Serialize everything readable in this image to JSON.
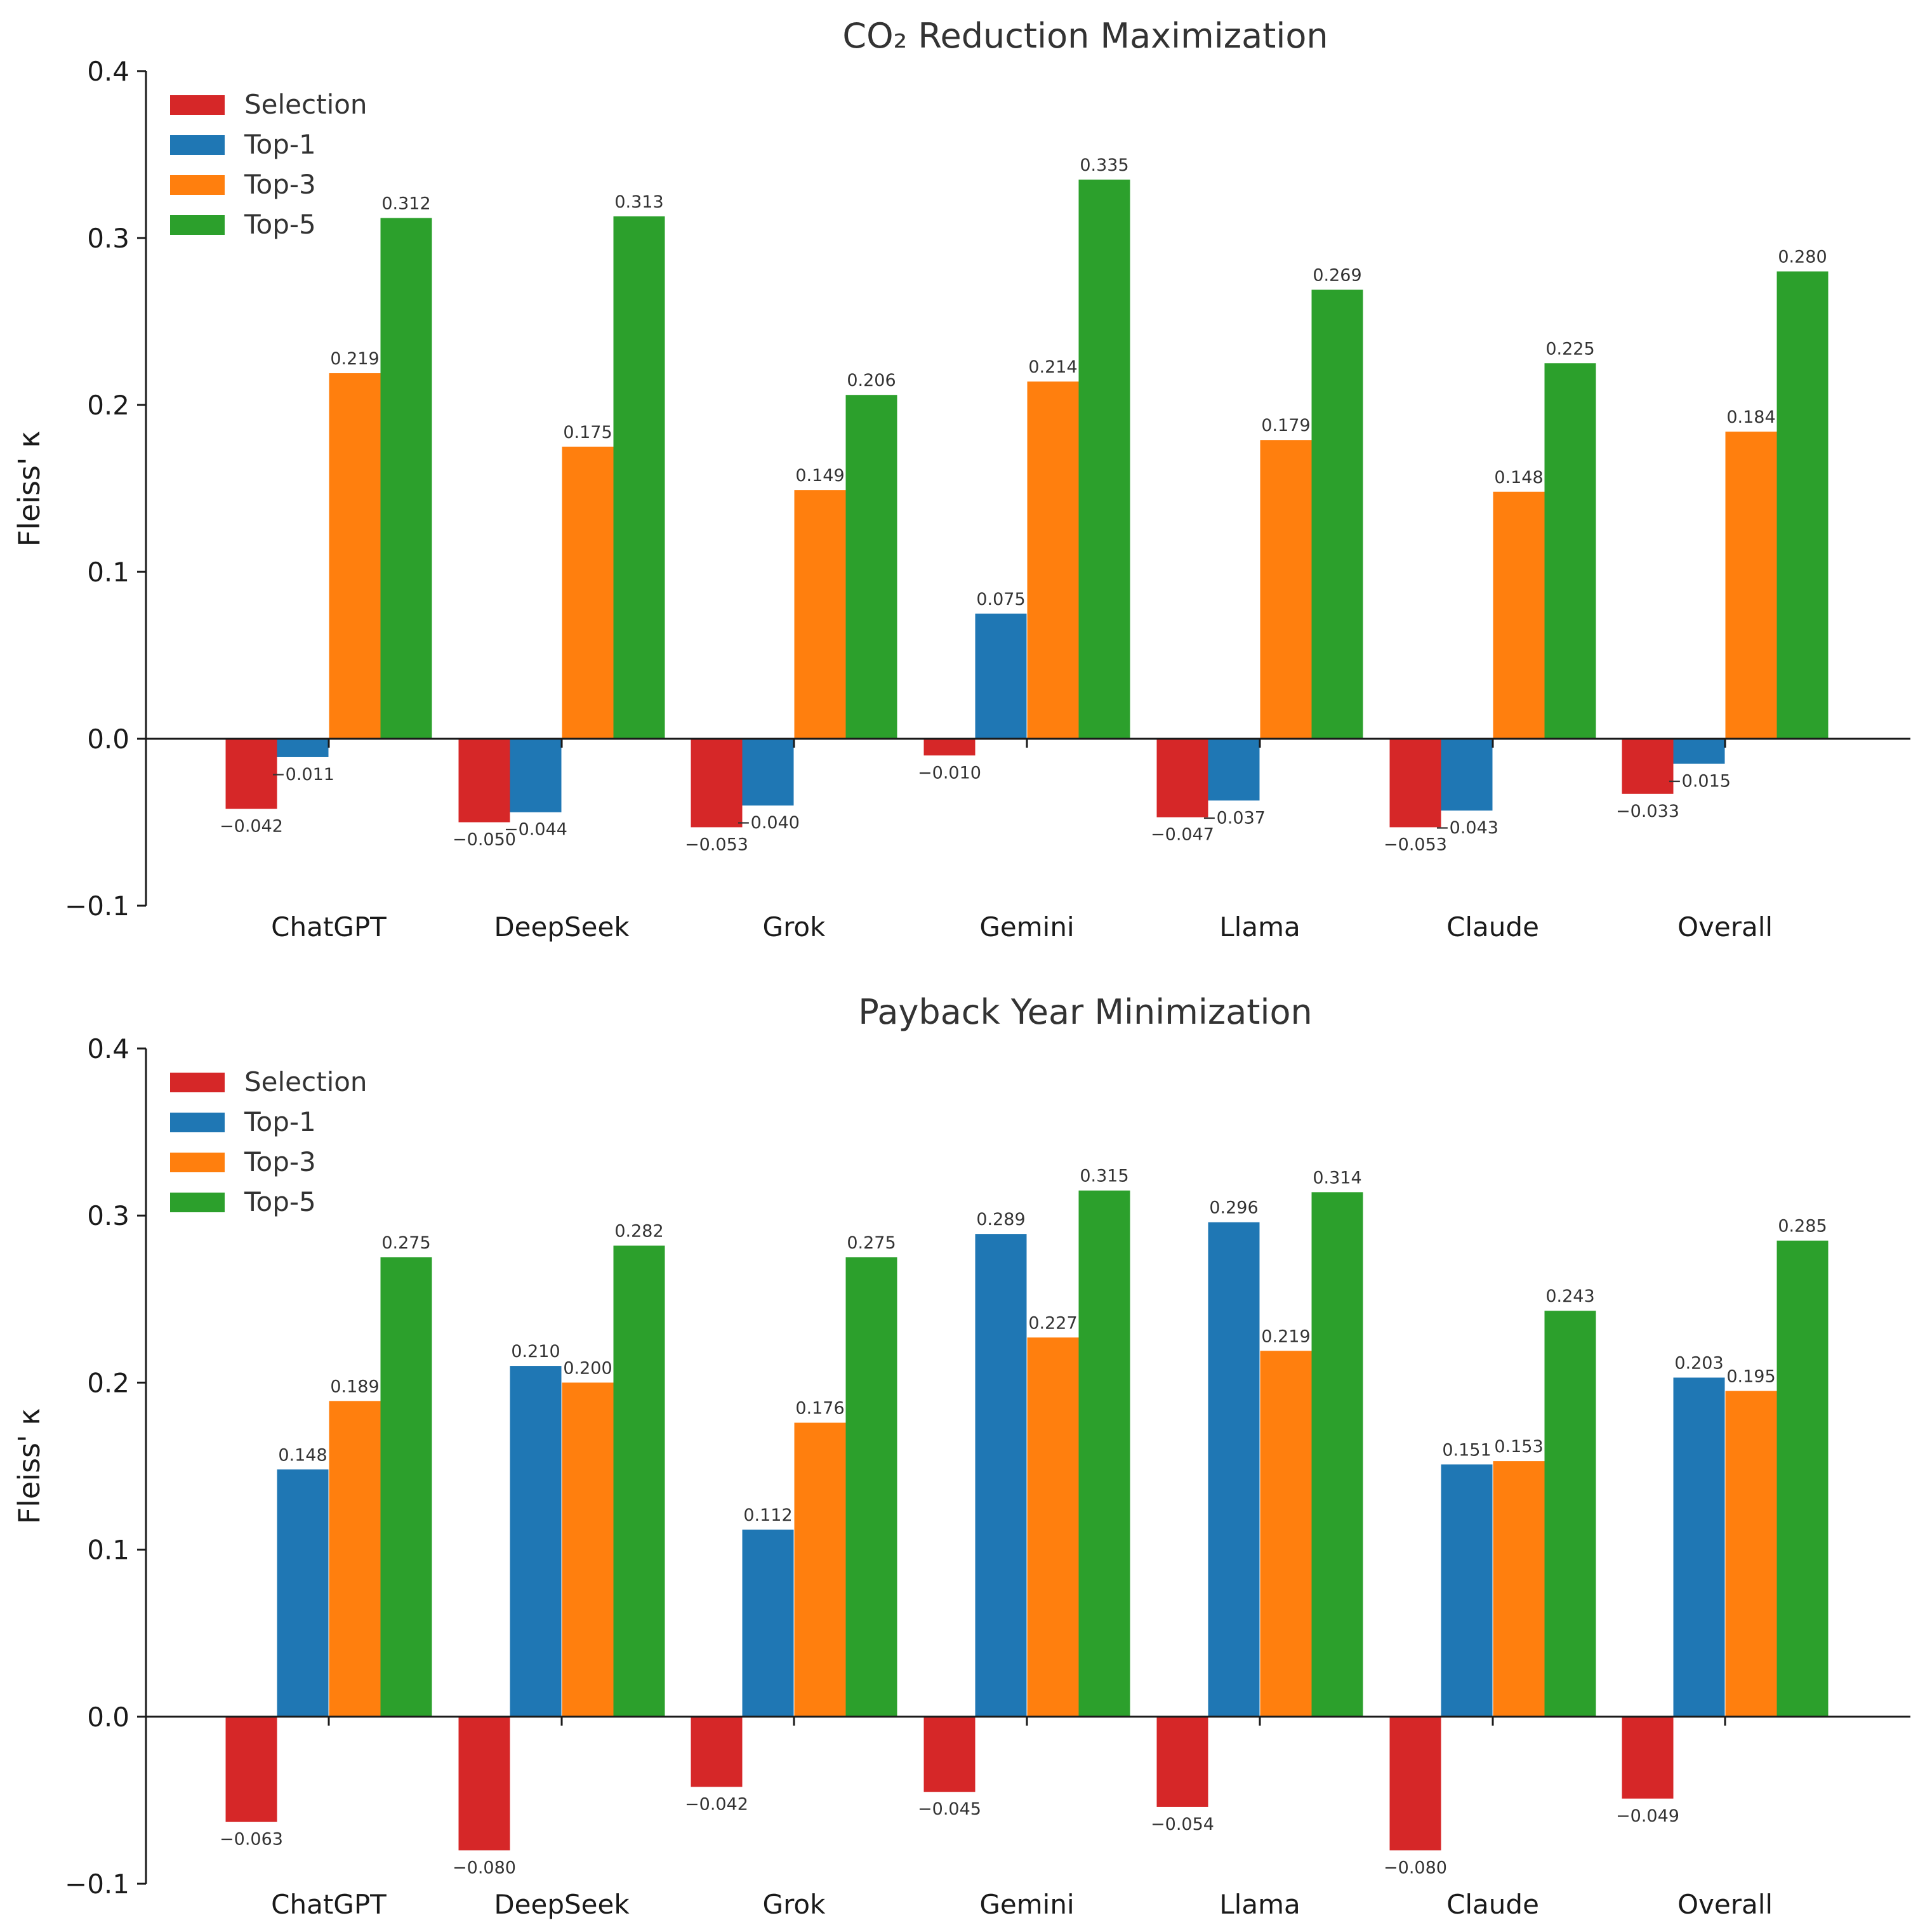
{
  "chart_data": [
    {
      "type": "bar",
      "title": "CO₂ Reduction Maximization",
      "xlabel": "",
      "ylabel": "Fleiss' κ",
      "ylim": [
        -0.1,
        0.4
      ],
      "yticks": [
        "−0.1",
        "0.0",
        "0.1",
        "0.2",
        "0.3",
        "0.4"
      ],
      "grid": false,
      "legend_position": "top-left",
      "categories": [
        "ChatGPT",
        "DeepSeek",
        "Grok",
        "Gemini",
        "Llama",
        "Claude",
        "Overall"
      ],
      "series": [
        {
          "name": "Selection",
          "color": "#d62728",
          "values": [
            -0.042,
            -0.05,
            -0.053,
            -0.01,
            -0.047,
            -0.053,
            -0.033
          ],
          "labels": [
            "−0.042",
            "−0.050",
            "−0.053",
            "−0.010",
            "−0.047",
            "−0.053",
            "−0.033"
          ]
        },
        {
          "name": "Top-1",
          "color": "#1f77b4",
          "values": [
            -0.011,
            -0.044,
            -0.04,
            0.075,
            -0.037,
            -0.043,
            -0.015
          ],
          "labels": [
            "−0.011",
            "−0.044",
            "−0.040",
            "0.075",
            "−0.037",
            "−0.043",
            "−0.015"
          ]
        },
        {
          "name": "Top-3",
          "color": "#ff7f0e",
          "values": [
            0.219,
            0.175,
            0.149,
            0.214,
            0.179,
            0.148,
            0.184
          ],
          "labels": [
            "0.219",
            "0.175",
            "0.149",
            "0.214",
            "0.179",
            "0.148",
            "0.184"
          ]
        },
        {
          "name": "Top-5",
          "color": "#2ca02c",
          "values": [
            0.312,
            0.313,
            0.206,
            0.335,
            0.269,
            0.225,
            0.28
          ],
          "labels": [
            "0.312",
            "0.313",
            "0.206",
            "0.335",
            "0.269",
            "0.225",
            "0.280"
          ]
        }
      ]
    },
    {
      "type": "bar",
      "title": "Payback Year Minimization",
      "xlabel": "",
      "ylabel": "Fleiss' κ",
      "ylim": [
        -0.1,
        0.4
      ],
      "yticks": [
        "−0.1",
        "0.0",
        "0.1",
        "0.2",
        "0.3",
        "0.4"
      ],
      "grid": false,
      "legend_position": "top-left",
      "categories": [
        "ChatGPT",
        "DeepSeek",
        "Grok",
        "Gemini",
        "Llama",
        "Claude",
        "Overall"
      ],
      "series": [
        {
          "name": "Selection",
          "color": "#d62728",
          "values": [
            -0.063,
            -0.08,
            -0.042,
            -0.045,
            -0.054,
            -0.08,
            -0.049
          ],
          "labels": [
            "−0.063",
            "−0.080",
            "−0.042",
            "−0.045",
            "−0.054",
            "−0.080",
            "−0.049"
          ]
        },
        {
          "name": "Top-1",
          "color": "#1f77b4",
          "values": [
            0.148,
            0.21,
            0.112,
            0.289,
            0.296,
            0.151,
            0.203
          ],
          "labels": [
            "0.148",
            "0.210",
            "0.112",
            "0.289",
            "0.296",
            "0.151",
            "0.203"
          ]
        },
        {
          "name": "Top-3",
          "color": "#ff7f0e",
          "values": [
            0.189,
            0.2,
            0.176,
            0.227,
            0.219,
            0.153,
            0.195
          ],
          "labels": [
            "0.189",
            "0.200",
            "0.176",
            "0.227",
            "0.219",
            "0.153",
            "0.195"
          ]
        },
        {
          "name": "Top-5",
          "color": "#2ca02c",
          "values": [
            0.275,
            0.282,
            0.275,
            0.315,
            0.314,
            0.243,
            0.285
          ],
          "labels": [
            "0.275",
            "0.282",
            "0.275",
            "0.315",
            "0.314",
            "0.243",
            "0.285"
          ]
        }
      ]
    }
  ]
}
